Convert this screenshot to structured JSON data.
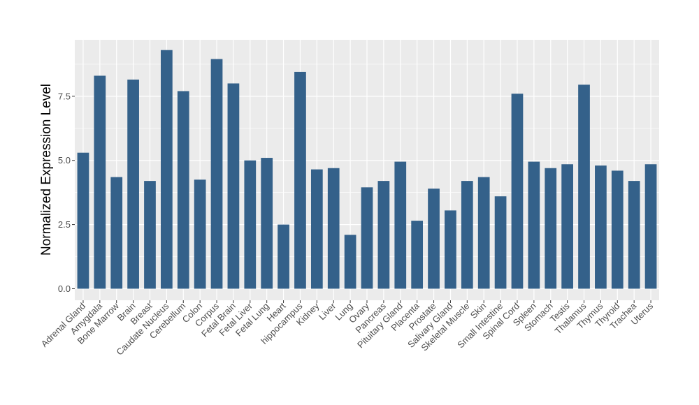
{
  "chart_data": {
    "type": "bar",
    "title": "",
    "xlabel": "",
    "ylabel": "Normalized Expression Level",
    "ylim": [
      -0.45,
      9.7
    ],
    "yticks": [
      0.0,
      2.5,
      5.0,
      7.5
    ],
    "ytick_labels": [
      "0.0",
      "2.5",
      "5.0",
      "7.5"
    ],
    "grid": true,
    "legend": "none",
    "bar_color": "#34618a",
    "panel_background": "#ebebeb",
    "gridline_color": "#ffffff",
    "categories": [
      "Adrenal Gland",
      "Amygdala",
      "Bone Marrow",
      "Brain",
      "Breast",
      "Caudate Nucleus",
      "Cerebellum",
      "Colon",
      "Corpus",
      "Fetal Brain",
      "Fetal Liver",
      "Fetal Lung",
      "Heart",
      "hippocampus",
      "Kidney",
      "Liver",
      "Lung",
      "Ovary",
      "Pancreas",
      "Pituitary Gland",
      "Placenta",
      "Prostate",
      "Salivary Gland",
      "Skeletal Muscle",
      "Skin",
      "Small Intestine",
      "Spinal Cord",
      "Spleen",
      "Stomach",
      "Testis",
      "Thalamus",
      "Thymus",
      "Thyroid",
      "Trachea",
      "Uterus"
    ],
    "values": [
      5.3,
      8.3,
      4.35,
      8.15,
      4.2,
      9.3,
      7.7,
      4.25,
      8.95,
      8.0,
      5.0,
      5.1,
      2.5,
      8.45,
      4.65,
      4.7,
      2.1,
      3.95,
      4.2,
      4.95,
      2.65,
      3.9,
      3.05,
      4.2,
      4.35,
      3.6,
      7.6,
      4.95,
      4.7,
      4.85,
      7.95,
      4.8,
      4.6,
      4.2,
      4.85
    ]
  }
}
